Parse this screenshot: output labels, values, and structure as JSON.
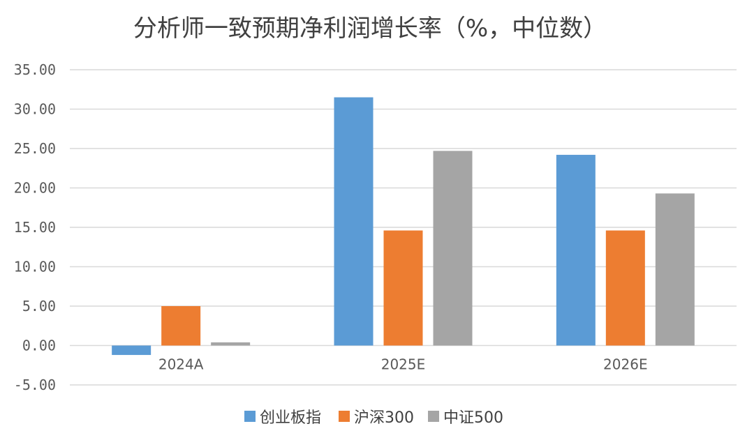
{
  "chart_data": {
    "type": "bar",
    "title": "分析师一致预期净利润增长率（%，中位数）",
    "categories": [
      "2024A",
      "2025E",
      "2026E"
    ],
    "series": [
      {
        "name": "创业板指",
        "color": "#5B9BD5",
        "values": [
          -1.2,
          31.5,
          24.2
        ]
      },
      {
        "name": "沪深300",
        "color": "#ED7D31",
        "values": [
          5.0,
          14.6,
          14.6
        ]
      },
      {
        "name": "中证500",
        "color": "#A5A5A5",
        "values": [
          0.4,
          24.7,
          19.3
        ]
      }
    ],
    "ylim": [
      -5,
      35
    ],
    "yticks": [
      "-5.00",
      "0.00",
      "5.00",
      "10.00",
      "15.00",
      "20.00",
      "25.00",
      "30.00",
      "35.00"
    ],
    "grid": true,
    "legend_position": "bottom"
  }
}
